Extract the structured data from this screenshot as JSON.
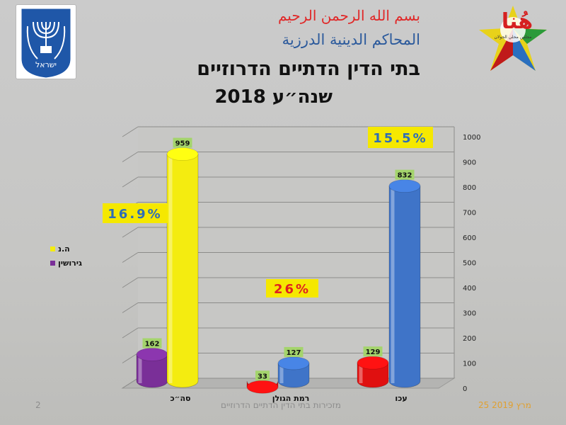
{
  "header": {
    "arabic_line1": "بسم الله الرحمن الرحيم",
    "arabic_line2": "المحاكم الدينية الدرزية",
    "title": "בתי הדין הדתיים הדרוזיים",
    "subtitle": "שנה״ע 2018"
  },
  "logo": {
    "text": "هُنا",
    "caption": "مجلس محلي الجولان"
  },
  "emblem": {
    "caption": "ישראל"
  },
  "footer": {
    "page": "2",
    "center": "מזכירות בתי הדין הדתיים הדרוזיים",
    "date": "25 מרץ 2019"
  },
  "colors": {
    "marriage": "#f4ec10",
    "divorce": "#7a2f98",
    "red": "#e01010",
    "blue": "#3f74c8"
  },
  "chart_data": {
    "type": "bar",
    "categories": [
      "סה״כ",
      "רמת הגולן",
      "עכו"
    ],
    "series": [
      {
        "name": "גירושין",
        "values": [
          162,
          33,
          129
        ]
      },
      {
        "name": "ה.נ",
        "values": [
          959,
          127,
          832
        ]
      }
    ],
    "ylim": [
      0,
      1000
    ],
    "yticks": [
      0,
      100,
      200,
      300,
      400,
      500,
      600,
      700,
      800,
      900,
      1000
    ],
    "annotations": [
      "16.9%",
      "26%",
      "15.5%"
    ],
    "legend": "left",
    "grid": true
  }
}
